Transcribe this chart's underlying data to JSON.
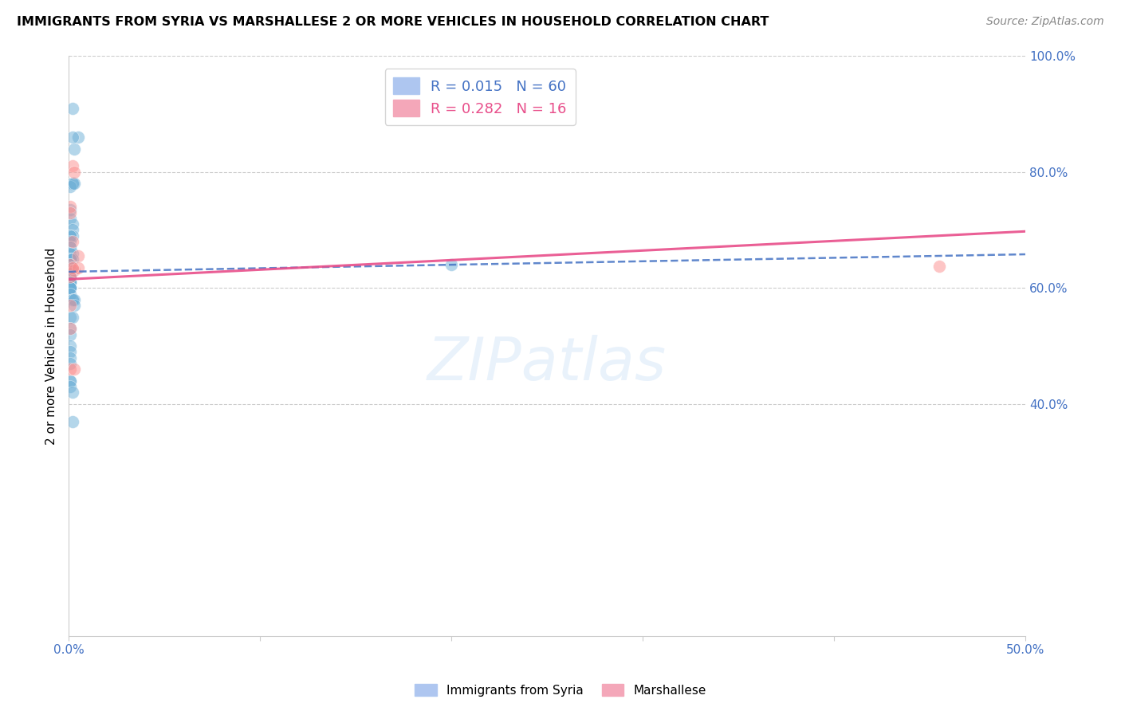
{
  "title": "IMMIGRANTS FROM SYRIA VS MARSHALLESE 2 OR MORE VEHICLES IN HOUSEHOLD CORRELATION CHART",
  "source": "Source: ZipAtlas.com",
  "ylabel": "2 or more Vehicles in Household",
  "xlim": [
    0.0,
    0.5
  ],
  "ylim": [
    0.0,
    1.0
  ],
  "syria_x": [
    0.002,
    0.003,
    0.005,
    0.002,
    0.002,
    0.002,
    0.001,
    0.003,
    0.001,
    0.001,
    0.002,
    0.002,
    0.001,
    0.002,
    0.001,
    0.001,
    0.001,
    0.001,
    0.002,
    0.001,
    0.001,
    0.001,
    0.001,
    0.002,
    0.001,
    0.001,
    0.001,
    0.001,
    0.002,
    0.001,
    0.001,
    0.001,
    0.001,
    0.001,
    0.001,
    0.001,
    0.001,
    0.001,
    0.001,
    0.001,
    0.001,
    0.001,
    0.002,
    0.002,
    0.003,
    0.003,
    0.001,
    0.002,
    0.001,
    0.001,
    0.001,
    0.001,
    0.001,
    0.001,
    0.001,
    0.001,
    0.001,
    0.002,
    0.002,
    0.2
  ],
  "syria_y": [
    0.91,
    0.84,
    0.86,
    0.78,
    0.86,
    0.78,
    0.775,
    0.78,
    0.735,
    0.72,
    0.71,
    0.7,
    0.69,
    0.69,
    0.69,
    0.68,
    0.67,
    0.67,
    0.66,
    0.66,
    0.65,
    0.65,
    0.65,
    0.65,
    0.64,
    0.635,
    0.63,
    0.625,
    0.63,
    0.625,
    0.62,
    0.62,
    0.62,
    0.61,
    0.61,
    0.61,
    0.61,
    0.6,
    0.6,
    0.6,
    0.6,
    0.59,
    0.58,
    0.58,
    0.58,
    0.57,
    0.55,
    0.55,
    0.53,
    0.52,
    0.5,
    0.49,
    0.48,
    0.47,
    0.44,
    0.44,
    0.43,
    0.42,
    0.37,
    0.64
  ],
  "marsh_x": [
    0.001,
    0.001,
    0.001,
    0.002,
    0.003,
    0.002,
    0.003,
    0.005,
    0.005,
    0.001,
    0.002,
    0.001,
    0.001,
    0.001,
    0.003,
    0.455
  ],
  "marsh_y": [
    0.74,
    0.73,
    0.64,
    0.81,
    0.63,
    0.68,
    0.8,
    0.655,
    0.635,
    0.57,
    0.635,
    0.53,
    0.62,
    0.46,
    0.46,
    0.638
  ],
  "syria_color": "#6baed6",
  "marsh_color": "#fc8d8d",
  "syria_line_color": "#4472c4",
  "marsh_line_color": "#e84e8a",
  "watermark": "ZIPatlas",
  "background_color": "#ffffff",
  "grid_color": "#cccccc",
  "syria_R": 0.015,
  "syria_N": 60,
  "marsh_R": 0.282,
  "marsh_N": 16,
  "syria_intercept": 0.628,
  "syria_slope": 0.06,
  "marsh_intercept": 0.615,
  "marsh_slope": 0.165
}
